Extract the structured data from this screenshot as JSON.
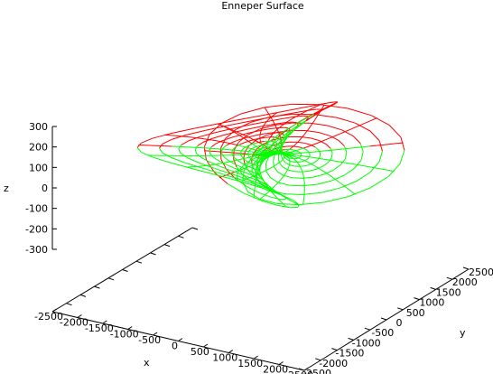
{
  "chart_data": {
    "type": "surface",
    "title": "Enneper Surface",
    "xlabel": "x",
    "ylabel": "y",
    "zlabel": "z",
    "xlim": [
      -2500,
      2500
    ],
    "ylim": [
      -2500,
      2500
    ],
    "zlim": [
      -300,
      300
    ],
    "x_ticks": [
      "-2500",
      "-2000",
      "-1500",
      "-1000",
      "-500",
      "0",
      "500",
      "1000",
      "1500",
      "2000",
      "2500"
    ],
    "y_ticks": [
      "-2500",
      "-2000",
      "-1500",
      "-1000",
      "-500",
      "0",
      "500",
      "1000",
      "1500",
      "2000",
      "2500"
    ],
    "z_ticks": [
      "300",
      "200",
      "100",
      "0",
      "-100",
      "-200",
      "-300"
    ],
    "series": [
      {
        "part": "front mesh",
        "color": "#00ff00"
      },
      {
        "part": "back mesh",
        "color": "#ff0000"
      }
    ]
  }
}
